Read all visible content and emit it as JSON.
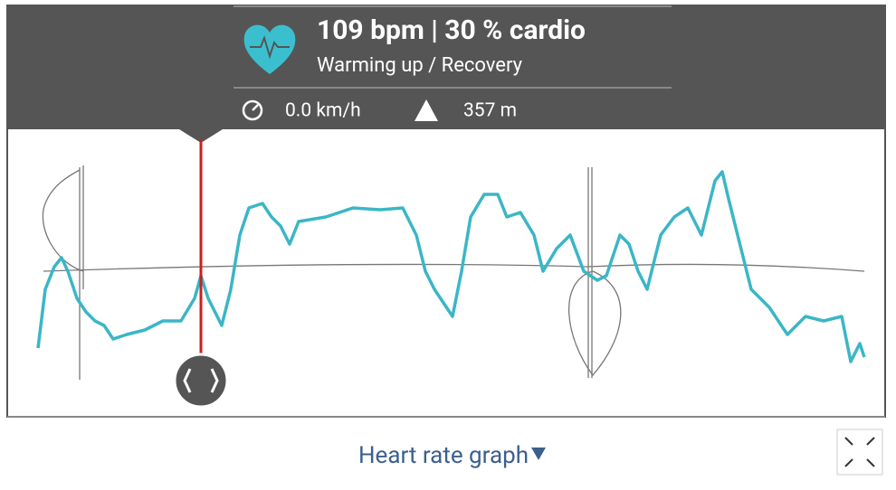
{
  "header": {
    "title": "109 bpm | 30 % cardio",
    "subtitle": "Warming up / Recovery",
    "speed": "0.0 km/h",
    "altitude": "357 m"
  },
  "footer": {
    "graph_selector": "Heart rate graph"
  }
}
